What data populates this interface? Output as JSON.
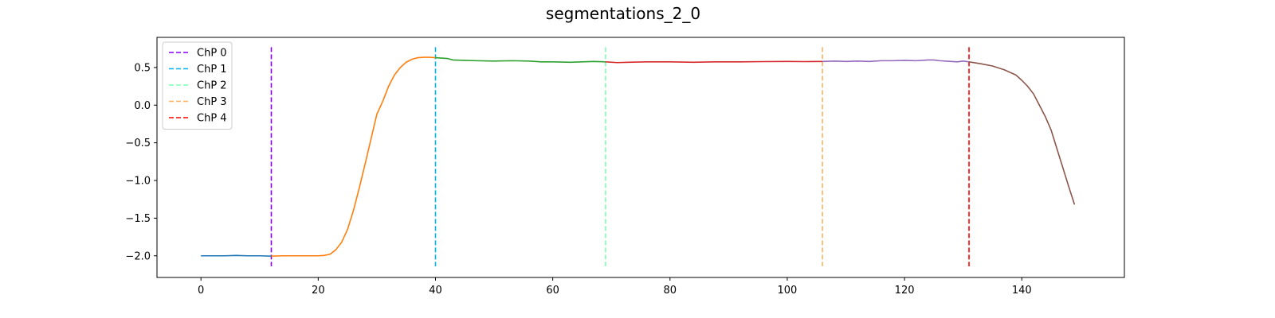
{
  "chart_data": {
    "type": "line",
    "title": "segmentations_2_0",
    "xlabel": "",
    "ylabel": "",
    "xlim": [
      -7.5,
      157.5
    ],
    "ylim": [
      -2.2875,
      0.9
    ],
    "xticks": [
      0,
      20,
      40,
      60,
      80,
      100,
      120,
      140
    ],
    "yticks": [
      -2.0,
      -1.5,
      -1.0,
      -0.5,
      0.0,
      0.5
    ],
    "xtick_labels": [
      "0",
      "20",
      "40",
      "60",
      "80",
      "100",
      "120",
      "140"
    ],
    "ytick_labels": [
      "−2.0",
      "−1.5",
      "−1.0",
      "−0.5",
      "0.0",
      "0.5"
    ],
    "grid": false,
    "legend_position": "top-left",
    "segments": [
      {
        "color": "#1f77b4",
        "x": [
          0,
          2,
          4,
          6,
          8,
          10,
          12
        ],
        "y": [
          -2.0,
          -2.0,
          -2.0,
          -1.995,
          -2.0,
          -2.0,
          -2.005
        ]
      },
      {
        "color": "#ff7f0e",
        "x": [
          12,
          14,
          16,
          18,
          20,
          21,
          22,
          23,
          24,
          25,
          26,
          27,
          28,
          29,
          30,
          31,
          32,
          33,
          34,
          35,
          36,
          37,
          38,
          39,
          40
        ],
        "y": [
          -2.005,
          -2.0,
          -2.0,
          -2.0,
          -2.0,
          -1.995,
          -1.98,
          -1.92,
          -1.82,
          -1.65,
          -1.4,
          -1.1,
          -0.78,
          -0.45,
          -0.12,
          0.05,
          0.25,
          0.4,
          0.5,
          0.57,
          0.61,
          0.63,
          0.635,
          0.635,
          0.63
        ]
      },
      {
        "color": "#2ca02c",
        "x": [
          40,
          42,
          43,
          45,
          47,
          50,
          53,
          56,
          58,
          60,
          63,
          65,
          67,
          69
        ],
        "y": [
          0.63,
          0.62,
          0.6,
          0.595,
          0.59,
          0.585,
          0.59,
          0.585,
          0.575,
          0.575,
          0.57,
          0.575,
          0.58,
          0.575
        ]
      },
      {
        "color": "#d62728",
        "x": [
          69,
          71,
          73,
          76,
          80,
          84,
          88,
          92,
          96,
          100,
          103,
          106
        ],
        "y": [
          0.575,
          0.565,
          0.57,
          0.575,
          0.575,
          0.57,
          0.575,
          0.575,
          0.578,
          0.58,
          0.578,
          0.58
        ]
      },
      {
        "color": "#9467bd",
        "x": [
          106,
          108,
          110,
          112,
          114,
          116,
          118,
          120,
          122,
          124,
          125,
          126,
          128,
          129,
          130,
          131
        ],
        "y": [
          0.58,
          0.585,
          0.58,
          0.585,
          0.58,
          0.59,
          0.59,
          0.595,
          0.59,
          0.6,
          0.6,
          0.59,
          0.58,
          0.575,
          0.585,
          0.575
        ]
      },
      {
        "color": "#8c564b",
        "x": [
          131,
          133,
          135,
          137,
          139,
          140,
          141,
          142,
          143,
          144,
          145,
          146,
          147,
          148,
          149
        ],
        "y": [
          0.575,
          0.55,
          0.52,
          0.47,
          0.4,
          0.33,
          0.25,
          0.15,
          0.0,
          -0.15,
          -0.33,
          -0.58,
          -0.83,
          -1.08,
          -1.32
        ]
      }
    ],
    "changepoints": [
      {
        "label": "ChP 0",
        "x": 12,
        "color": "#8b00ff"
      },
      {
        "label": "ChP 1",
        "x": 40,
        "color": "#00b5eb"
      },
      {
        "label": "ChP 2",
        "x": 69,
        "color": "#80ffb4"
      },
      {
        "label": "ChP 3",
        "x": 106,
        "color": "#ffb360"
      },
      {
        "label": "ChP 4",
        "x": 131,
        "color": "#ff0000"
      }
    ],
    "changepoint_ylim": [
      -2.14,
      0.77
    ]
  }
}
